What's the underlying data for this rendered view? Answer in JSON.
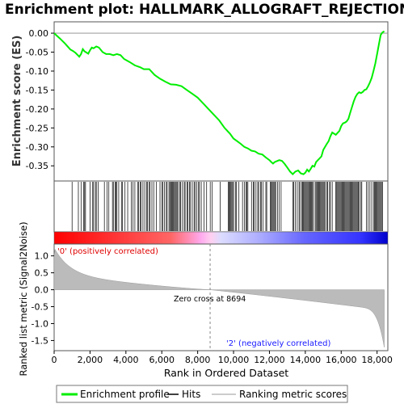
{
  "chart_data": {
    "type": "line",
    "title": "Enrichment plot: HALLMARK_ALLOGRAFT_REJECTION",
    "ylabel": "Enrichment score (ES)",
    "ylabel2": "Ranked list metric (Signal2Noise)",
    "xlabel": "Rank in Ordered Dataset",
    "xlim": [
      0,
      18600
    ],
    "ylim": [
      -0.39,
      0.03
    ],
    "ylim2": [
      -1.8,
      1.35
    ],
    "xticks": [
      0,
      2000,
      4000,
      6000,
      8000,
      10000,
      12000,
      14000,
      16000,
      18000
    ],
    "xtick_labels": [
      "0",
      "2,000",
      "4,000",
      "6,000",
      "8,000",
      "10,000",
      "12,000",
      "14,000",
      "16,000",
      "18,000"
    ],
    "yticks": [
      0.0,
      -0.05,
      -0.1,
      -0.15,
      -0.2,
      -0.25,
      -0.3,
      -0.35
    ],
    "ytick_labels": [
      "0.00",
      "-0.05",
      "-0.10",
      "-0.15",
      "-0.20",
      "-0.25",
      "-0.30",
      "-0.35"
    ],
    "yticks2": [
      1.0,
      0.5,
      0.0,
      -0.5,
      -1.0,
      -1.5
    ],
    "ytick2_labels": [
      "1.0",
      "0.5",
      "0.0",
      "-0.5",
      "-1.0",
      "-1.5"
    ],
    "zero_cross": 8694,
    "zero_cross_label": "Zero cross at 8694",
    "pos_label": "'0' (positively correlated)",
    "neg_label": "'2' (negatively correlated)",
    "series": [
      {
        "name": "Enrichment profile",
        "color": "#00ee00",
        "x": [
          0,
          300,
          600,
          900,
          1050,
          1200,
          1400,
          1500,
          1600,
          1700,
          1900,
          2000,
          2100,
          2200,
          2350,
          2500,
          2700,
          2900,
          3100,
          3300,
          3500,
          3700,
          3900,
          4200,
          4500,
          4800,
          5000,
          5300,
          5600,
          5900,
          6200,
          6500,
          6800,
          7100,
          7400,
          7700,
          8000,
          8300,
          8600,
          8900,
          9200,
          9500,
          9800,
          10000,
          10200,
          10400,
          10600,
          10800,
          11000,
          11200,
          11400,
          11600,
          11800,
          12000,
          12100,
          12200,
          12300,
          12400,
          12550,
          12700,
          12850,
          13000,
          13150,
          13300,
          13450,
          13600,
          13750,
          13900,
          14000,
          14100,
          14200,
          14300,
          14400,
          14500,
          14600,
          14700,
          14800,
          14900,
          15000,
          15100,
          15200,
          15300,
          15400,
          15500,
          15600,
          15700,
          15800,
          15900,
          16000,
          16100,
          16200,
          16300,
          16400,
          16500,
          16600,
          16700,
          16800,
          16900,
          17000,
          17100,
          17200,
          17300,
          17400,
          17500,
          17600,
          17700,
          17800,
          17900,
          18000,
          18100,
          18200,
          18300,
          18400
        ],
        "y": [
          0.0,
          -0.013,
          -0.027,
          -0.043,
          -0.047,
          -0.052,
          -0.062,
          -0.055,
          -0.042,
          -0.048,
          -0.054,
          -0.045,
          -0.038,
          -0.04,
          -0.035,
          -0.038,
          -0.05,
          -0.055,
          -0.055,
          -0.058,
          -0.055,
          -0.058,
          -0.068,
          -0.076,
          -0.085,
          -0.09,
          -0.095,
          -0.095,
          -0.11,
          -0.12,
          -0.128,
          -0.135,
          -0.136,
          -0.14,
          -0.15,
          -0.16,
          -0.17,
          -0.185,
          -0.2,
          -0.215,
          -0.23,
          -0.25,
          -0.265,
          -0.278,
          -0.285,
          -0.292,
          -0.3,
          -0.304,
          -0.31,
          -0.312,
          -0.318,
          -0.32,
          -0.328,
          -0.335,
          -0.34,
          -0.344,
          -0.34,
          -0.338,
          -0.335,
          -0.337,
          -0.345,
          -0.355,
          -0.365,
          -0.372,
          -0.365,
          -0.362,
          -0.37,
          -0.372,
          -0.368,
          -0.36,
          -0.365,
          -0.358,
          -0.35,
          -0.352,
          -0.34,
          -0.335,
          -0.33,
          -0.325,
          -0.308,
          -0.3,
          -0.292,
          -0.285,
          -0.272,
          -0.262,
          -0.265,
          -0.268,
          -0.263,
          -0.258,
          -0.245,
          -0.238,
          -0.236,
          -0.233,
          -0.226,
          -0.21,
          -0.195,
          -0.18,
          -0.168,
          -0.16,
          -0.156,
          -0.158,
          -0.155,
          -0.15,
          -0.148,
          -0.14,
          -0.13,
          -0.118,
          -0.1,
          -0.08,
          -0.055,
          -0.03,
          -0.005,
          0.002,
          0.005
        ]
      }
    ],
    "hits": [
      1000,
      1350,
      1500,
      1650,
      1700,
      1750,
      2000,
      2150,
      2200,
      2300,
      2350,
      2450,
      2800,
      2950,
      3050,
      3250,
      3300,
      3400,
      3450,
      3500,
      3600,
      3750,
      3800,
      3950,
      4100,
      4300,
      4400,
      4500,
      4650,
      4700,
      4800,
      4850,
      4950,
      5050,
      5150,
      5200,
      5300,
      5350,
      5450,
      5550,
      5700,
      5900,
      6000,
      6050,
      6150,
      6250,
      6300,
      6400,
      6450,
      6500,
      6550,
      6600,
      6650,
      6700,
      6750,
      6800,
      6850,
      6900,
      7000,
      7050,
      7150,
      7250,
      7300,
      7400,
      7450,
      7550,
      7600,
      7700,
      7800,
      7850,
      7950,
      8050,
      8100,
      8200,
      8350,
      8500,
      8700,
      8800,
      9250,
      9700,
      9750,
      9800,
      9850,
      9900,
      9950,
      10000,
      10100,
      10150,
      10300,
      10500,
      10600,
      10700,
      10750,
      10800,
      11000,
      11100,
      11150,
      11250,
      11350,
      11400,
      11500,
      11550,
      11650,
      11800,
      11850,
      12050,
      12100,
      12150,
      12200,
      12250,
      12300,
      12350,
      12450,
      12550,
      12650,
      13300,
      13350,
      13450,
      13550,
      13650,
      13700,
      13800,
      13850,
      13900,
      13950,
      14000,
      14050,
      14100,
      14150,
      14200,
      14250,
      14300,
      14350,
      14400,
      14450,
      14550,
      14600,
      14650,
      14700,
      14750,
      14800,
      14850,
      14900,
      14950,
      15000,
      15050,
      15100,
      15200,
      15250,
      15350,
      15400,
      15500,
      15700,
      15750,
      15800,
      15850,
      15900,
      15950,
      16000,
      16050,
      16100,
      16150,
      16200,
      16250,
      16300,
      16350,
      16400,
      16450,
      16500,
      16550,
      16600,
      16650,
      16700,
      16750,
      16800,
      16850,
      16900,
      16950,
      17000,
      17100,
      17150,
      17400,
      17500,
      17600,
      17700,
      17800,
      17850,
      17900,
      17950,
      18000,
      18050,
      18100,
      18150,
      18200,
      18250,
      18300
    ],
    "legend": [
      {
        "label": "Enrichment profile",
        "color": "#00ee00"
      },
      {
        "label": "Hits",
        "color": "#000000"
      },
      {
        "label": "Ranking metric scores",
        "color": "#bbbbbb"
      }
    ]
  }
}
